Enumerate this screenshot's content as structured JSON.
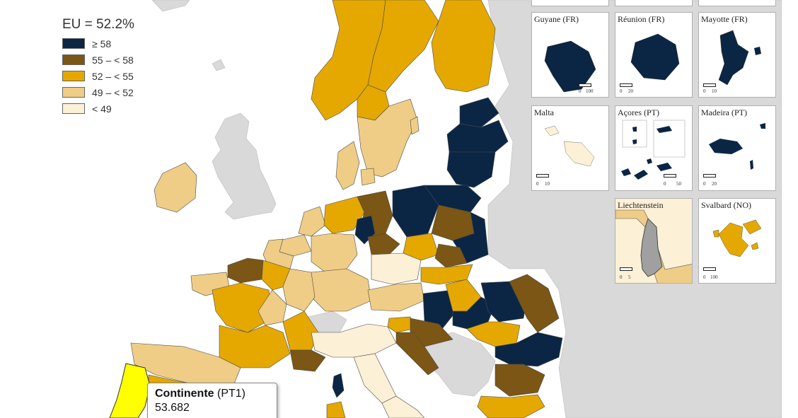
{
  "legend": {
    "title": "EU = 52.2%",
    "items": [
      {
        "label": "≥ 58",
        "color": "#0b2644"
      },
      {
        "label": "55 – < 58",
        "color": "#7b5614"
      },
      {
        "label": "52 – < 55",
        "color": "#e5a800"
      },
      {
        "label": "49 – < 52",
        "color": "#efcd86"
      },
      {
        "label": "< 49",
        "color": "#fcf0d6"
      }
    ]
  },
  "colors": {
    "land_no_data": "#d9d9d9",
    "sea": "#ffffff",
    "highlight": "#ffff00",
    "liechtenstein": "#a0a0a0"
  },
  "insets": [
    {
      "title": "Guyane (FR)",
      "scale_left": "0",
      "scale_right": "100"
    },
    {
      "title": "Réunion (FR)",
      "scale_left": "0",
      "scale_right": "20"
    },
    {
      "title": "Mayotte (FR)",
      "scale_left": "0",
      "scale_right": "10"
    },
    {
      "title": "Malta",
      "scale_left": "0",
      "scale_right": "10"
    },
    {
      "title": "Açores (PT)",
      "scale_left": "0",
      "scale_right": "50"
    },
    {
      "title": "Madeira (PT)",
      "scale_left": "0",
      "scale_right": "20"
    },
    {
      "title": "Liechtenstein",
      "scale_left": "0",
      "scale_right": "5"
    },
    {
      "title": "Svalbard (NO)",
      "scale_left": "0",
      "scale_right": "100"
    }
  ],
  "tooltip": {
    "name": "Continente",
    "code": "(PT1)",
    "value": "53.682"
  }
}
